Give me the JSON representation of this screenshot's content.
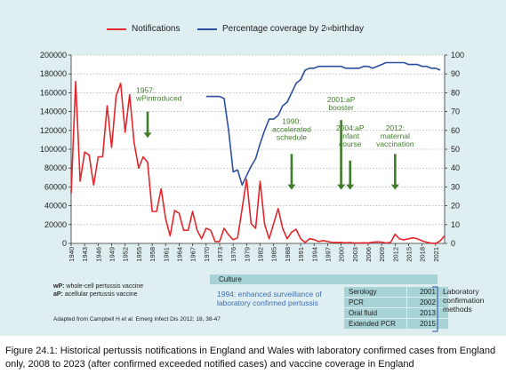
{
  "chart_data": {
    "type": "line",
    "series": [
      {
        "name": "Notifications",
        "axis": "left",
        "color": "#e3262b",
        "x": [
          1940,
          1941,
          1942,
          1943,
          1944,
          1945,
          1946,
          1947,
          1948,
          1949,
          1950,
          1951,
          1952,
          1953,
          1954,
          1955,
          1956,
          1957,
          1958,
          1959,
          1960,
          1961,
          1962,
          1963,
          1964,
          1965,
          1966,
          1967,
          1968,
          1969,
          1970,
          1971,
          1972,
          1973,
          1974,
          1975,
          1976,
          1977,
          1978,
          1979,
          1980,
          1981,
          1982,
          1983,
          1984,
          1985,
          1986,
          1987,
          1988,
          1989,
          1990,
          1991,
          1992,
          1993,
          1994,
          1995,
          1996,
          1997,
          1998,
          1999,
          2000,
          2001,
          2002,
          2003,
          2004,
          2005,
          2006,
          2007,
          2008,
          2009,
          2010,
          2011,
          2012,
          2013,
          2014,
          2015,
          2016,
          2017,
          2018,
          2019,
          2020,
          2021,
          2022,
          2023
        ],
        "values": [
          53000,
          172000,
          66000,
          97000,
          94000,
          62000,
          92000,
          92000,
          146000,
          102000,
          157000,
          170000,
          118000,
          158000,
          107000,
          80000,
          92000,
          86000,
          34000,
          34000,
          58000,
          26000,
          8000,
          35000,
          32000,
          14000,
          14000,
          34000,
          14000,
          5000,
          16000,
          14000,
          2000,
          2000,
          16000,
          9000,
          4000,
          6000,
          37000,
          68000,
          21000,
          16000,
          66000,
          20000,
          5000,
          21000,
          37000,
          16000,
          5000,
          12000,
          15000,
          5000,
          1000,
          5000,
          4000,
          2000,
          3000,
          2000,
          1000,
          1000,
          1000,
          700,
          900,
          500,
          500,
          700,
          600,
          1200,
          1600,
          1400,
          500,
          1100,
          9700,
          4700,
          3900,
          4900,
          5900,
          4800,
          2700,
          1300,
          300,
          100,
          2600,
          8000
        ]
      },
      {
        "name": "Percentage coverage by 2nd birthday",
        "axis": "right",
        "color": "#2b4f9e",
        "x": [
          1970,
          1971,
          1972,
          1973,
          1974,
          1975,
          1976,
          1977,
          1978,
          1979,
          1980,
          1981,
          1982,
          1983,
          1984,
          1985,
          1986,
          1987,
          1988,
          1989,
          1990,
          1991,
          1992,
          1993,
          1994,
          1995,
          1996,
          1997,
          1998,
          1999,
          2000,
          2001,
          2002,
          2003,
          2004,
          2005,
          2006,
          2007,
          2008,
          2009,
          2010,
          2011,
          2012,
          2013,
          2014,
          2015,
          2016,
          2017,
          2018,
          2019,
          2020,
          2021,
          2022
        ],
        "values": [
          78,
          78,
          78,
          78,
          77,
          60,
          38,
          39,
          31,
          36,
          41,
          45,
          53,
          60,
          66,
          66,
          68,
          73,
          75,
          80,
          85,
          87,
          92,
          93,
          93,
          94,
          94,
          94,
          94,
          94,
          94,
          93,
          93,
          93,
          93,
          94,
          94,
          93,
          94,
          95,
          96,
          96,
          96,
          96,
          96,
          95,
          95,
          95,
          94,
          94,
          93,
          93,
          92
        ]
      }
    ],
    "xlabel": "",
    "ylabel_left": "",
    "ylabel_right": "",
    "xlim": [
      1940,
      2023
    ],
    "ylim_left": [
      0,
      200000
    ],
    "ylim_right": [
      0,
      100
    ],
    "y_ticks_left": [
      0,
      20000,
      40000,
      60000,
      80000,
      100000,
      120000,
      140000,
      160000,
      180000,
      200000
    ],
    "y_ticks_right": [
      0,
      10,
      20,
      30,
      40,
      50,
      60,
      70,
      80,
      90,
      100
    ],
    "x_tick_labels": [
      "1940",
      "1943",
      "1946",
      "1949",
      "1952",
      "1955",
      "1958",
      "1961",
      "1964",
      "1967",
      "1970",
      "1973",
      "1976",
      "1979",
      "1982",
      "1985",
      "1988",
      "1991",
      "1994",
      "1997",
      "2000",
      "2003",
      "2006",
      "2009",
      "2012",
      "2015",
      "2018",
      "2021"
    ],
    "grid": "dotted horizontal",
    "legend_position": "top",
    "annotations": [
      {
        "year": 1957,
        "lines": [
          "1957:",
          "wPintroduced"
        ],
        "arrow_top": 140000,
        "arrow_bottom": 112000,
        "label_top": 160000,
        "align": "start",
        "dx": -13
      },
      {
        "year": 1989,
        "lines": [
          "1990:",
          "accelerated",
          "schedule"
        ],
        "arrow_top": 95000,
        "arrow_bottom": 57000,
        "label_top": 127000,
        "align": "middle",
        "dx": 0
      },
      {
        "year": 2000,
        "lines": [
          "2001:aP",
          "booster"
        ],
        "arrow_top": 131000,
        "arrow_bottom": 57000,
        "label_top": 150000,
        "align": "middle",
        "dx": 0
      },
      {
        "year": 2002,
        "lines": [
          "2004:aP",
          "infant",
          "course"
        ],
        "arrow_top": 88000,
        "arrow_bottom": 57000,
        "label_top": 120000,
        "align": "middle",
        "dx": 0
      },
      {
        "year": 2012,
        "lines": [
          "2012:",
          "maternal",
          "vaccination"
        ],
        "arrow_top": 95000,
        "arrow_bottom": 57000,
        "label_top": 120000,
        "align": "middle",
        "dx": 0
      }
    ]
  },
  "legend": {
    "notifications": "Notifications",
    "coverage_prefix": "Percentage coverage by 2",
    "coverage_sup": "nd",
    "coverage_suffix": " birthday"
  },
  "vaccine_notes": {
    "wp_abbr": "wP:",
    "wp_text": " whole-cell pertussis vaccine",
    "ap_abbr": "aP:",
    "ap_text": " acellular pertussis vaccine"
  },
  "source": {
    "prefix": "Adapted from Campbell H ",
    "italic": "et al.",
    "suffix": " Emerg Infect Dis 2012; 18, 38-47"
  },
  "lab_methods": {
    "culture": "Culture",
    "surveillance_note": "1994: enhanced surveillance of laboratory confirmed pertussis",
    "methods": [
      {
        "name": "Serology",
        "year": "2001"
      },
      {
        "name": "PCR",
        "year": "2002"
      },
      {
        "name": "Oral fluid",
        "year": "2013"
      },
      {
        "name": "Extended PCR",
        "year": "2015"
      }
    ],
    "label_lines": [
      "Laboratory",
      "confirmation",
      "methods"
    ]
  },
  "caption": "Figure 24.1: Historical pertussis notifications in England and Wales with laboratory confirmed cases from England only, 2008 to 2023 (after confirmed exceeded notified cases) and vaccine coverage in England"
}
